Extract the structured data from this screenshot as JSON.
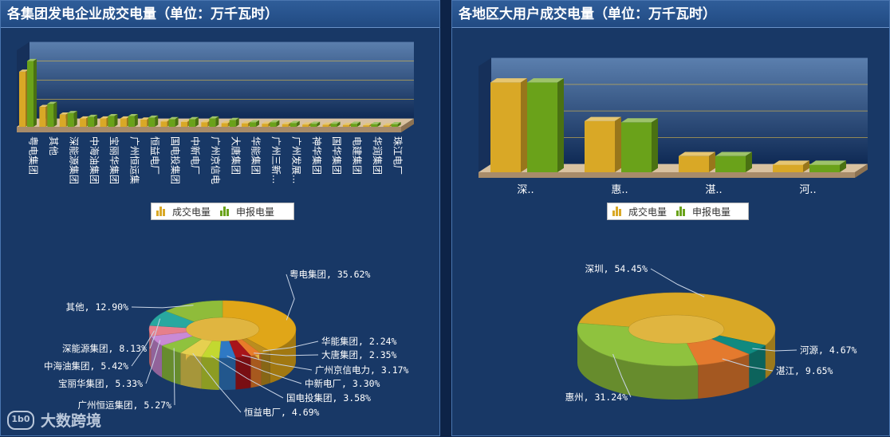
{
  "left_panel": {
    "title": "各集团发电企业成交电量（单位：万千瓦时）",
    "legend": {
      "deal": "成交电量",
      "declared": "申报电量"
    }
  },
  "right_panel": {
    "title": "各地区大用户成交电量（单位：万千瓦时）",
    "legend": {
      "deal": "成交电量",
      "declared": "申报电量"
    }
  },
  "watermark": "大数跨境",
  "colors": {
    "deal": "#d9a826",
    "declared": "#6aa21a"
  },
  "chart_data": [
    {
      "type": "bar",
      "title": "各集团发电企业成交电量（单位：万千瓦时）",
      "categories": [
        "粤电集团",
        "其他",
        "深能源集团",
        "中海油集团",
        "宝丽华集团",
        "广州恒运集",
        "恒益电厂",
        "国电投集团",
        "中新电厂",
        "广州京信电",
        "大唐集团",
        "华能集团",
        "广州三新...",
        "广州发展...",
        "神华集团",
        "国华集团",
        "电建集团",
        "华润集团",
        "珠江电厂"
      ],
      "series": [
        {
          "name": "成交电量",
          "values": [
            72,
            26,
            16,
            11,
            11,
            11,
            9.5,
            7,
            6.5,
            6,
            4.7,
            4.5,
            4,
            3.5,
            3,
            2.8,
            2.5,
            2,
            1.8
          ]
        },
        {
          "name": "申报电量",
          "values": [
            86,
            30,
            18,
            13,
            14,
            14,
            12,
            10,
            10,
            11,
            9,
            6,
            6,
            5,
            4,
            4,
            4,
            3.5,
            3.5
          ]
        }
      ],
      "ylim": [
        0,
        100
      ],
      "grid": true,
      "legend_position": "bottom"
    },
    {
      "type": "pie",
      "style": "donut-3d",
      "labels": [
        "粤电集团",
        "华能集团",
        "大唐集团",
        "广州京信电力",
        "中新电厂",
        "国电投集团",
        "恒益电厂",
        "广州恒运集团",
        "宝丽华集团",
        "中海油集团",
        "深能源集团",
        "其他"
      ],
      "values": [
        35.62,
        2.24,
        2.35,
        3.17,
        3.3,
        3.58,
        4.69,
        5.27,
        5.33,
        5.42,
        8.13,
        12.9
      ],
      "value_labels": [
        "35.62%",
        "2.24%",
        "2.35%",
        "3.17%",
        "3.30%",
        "3.58%",
        "4.69%",
        "5.27%",
        "5.33%",
        "5.42%",
        "8.13%",
        "12.90%"
      ]
    },
    {
      "type": "bar",
      "title": "各地区大用户成交电量（单位：万千瓦时）",
      "categories": [
        "深..",
        "惠..",
        "湛..",
        "河.."
      ],
      "series": [
        {
          "name": "成交电量",
          "values": [
            72,
            41,
            13,
            6
          ]
        },
        {
          "name": "申报电量",
          "values": [
            72,
            40,
            13,
            6
          ]
        }
      ],
      "ylim": [
        0,
        85
      ],
      "grid": true,
      "legend_position": "bottom"
    },
    {
      "type": "pie",
      "style": "donut-3d",
      "labels": [
        "深圳",
        "河源",
        "湛江",
        "惠州"
      ],
      "values": [
        54.45,
        4.67,
        9.65,
        31.24
      ],
      "value_labels": [
        "54.45%",
        "4.67%",
        "9.65%",
        "31.24%"
      ]
    }
  ]
}
